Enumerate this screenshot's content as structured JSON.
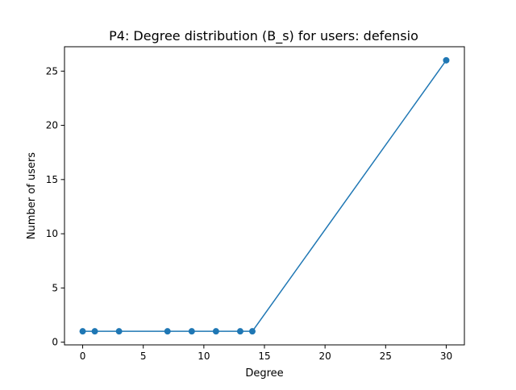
{
  "chart_data": {
    "type": "line",
    "title": "P4: Degree distribution (B_s) for users: defensio",
    "xlabel": "Degree",
    "ylabel": "Number of users",
    "x": [
      0,
      1,
      3,
      7,
      9,
      11,
      13,
      14,
      30
    ],
    "series": [
      {
        "values": [
          1,
          1,
          1,
          1,
          1,
          1,
          1,
          1,
          26
        ],
        "color": "#1f77b4",
        "marker": "circle"
      }
    ],
    "xlim": [
      -1.5,
      31.5
    ],
    "ylim": [
      -0.25,
      27.25
    ],
    "xticks": [
      0,
      5,
      10,
      15,
      20,
      25,
      30
    ],
    "yticks": [
      0,
      5,
      10,
      15,
      20,
      25
    ],
    "grid": false,
    "legend": false
  }
}
